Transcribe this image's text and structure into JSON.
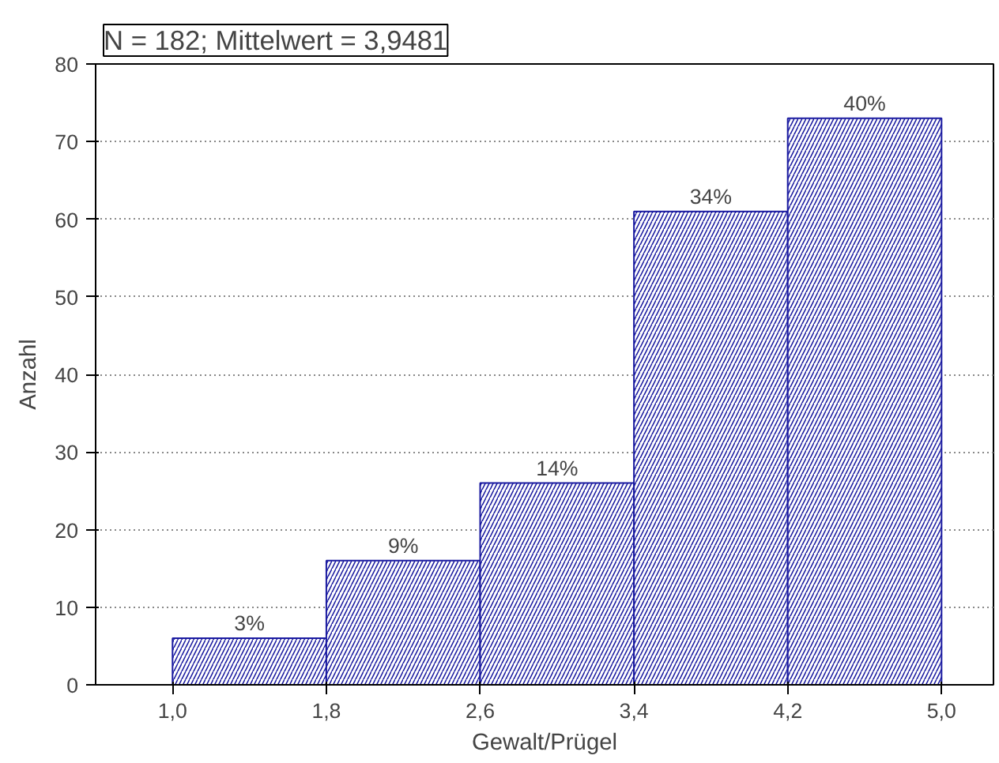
{
  "chart_data": {
    "type": "histogram",
    "title": "N = 182; Mittelwert = 3,9481",
    "xlabel": "Gewalt/Prügel",
    "ylabel": "Anzahl",
    "bins": [
      1.0,
      1.8,
      2.6,
      3.4,
      4.2,
      5.0
    ],
    "values": [
      6,
      16,
      26,
      61,
      73
    ],
    "annotations": [
      {
        "text": "3%",
        "x": 1.4,
        "y": 6
      },
      {
        "text": "9%",
        "x": 2.2,
        "y": 16
      },
      {
        "text": "14%",
        "x": 3.0,
        "y": 26
      },
      {
        "text": "34%",
        "x": 3.8,
        "y": 61
      },
      {
        "text": "40%",
        "x": 4.6,
        "y": 73
      }
    ],
    "color": "#1a1aa0",
    "xlim": [
      0.6,
      5.27
    ],
    "ylim": [
      0,
      80
    ],
    "xticks": [
      {
        "value": 1.0,
        "label": "1,0"
      },
      {
        "value": 1.8,
        "label": "1,8"
      },
      {
        "value": 2.6,
        "label": "2,6"
      },
      {
        "value": 3.4,
        "label": "3,4"
      },
      {
        "value": 4.2,
        "label": "4,2"
      },
      {
        "value": 5.0,
        "label": "5,0"
      }
    ],
    "yticks": [
      0,
      10,
      20,
      30,
      40,
      50,
      60,
      70,
      80
    ],
    "grid": "y"
  }
}
